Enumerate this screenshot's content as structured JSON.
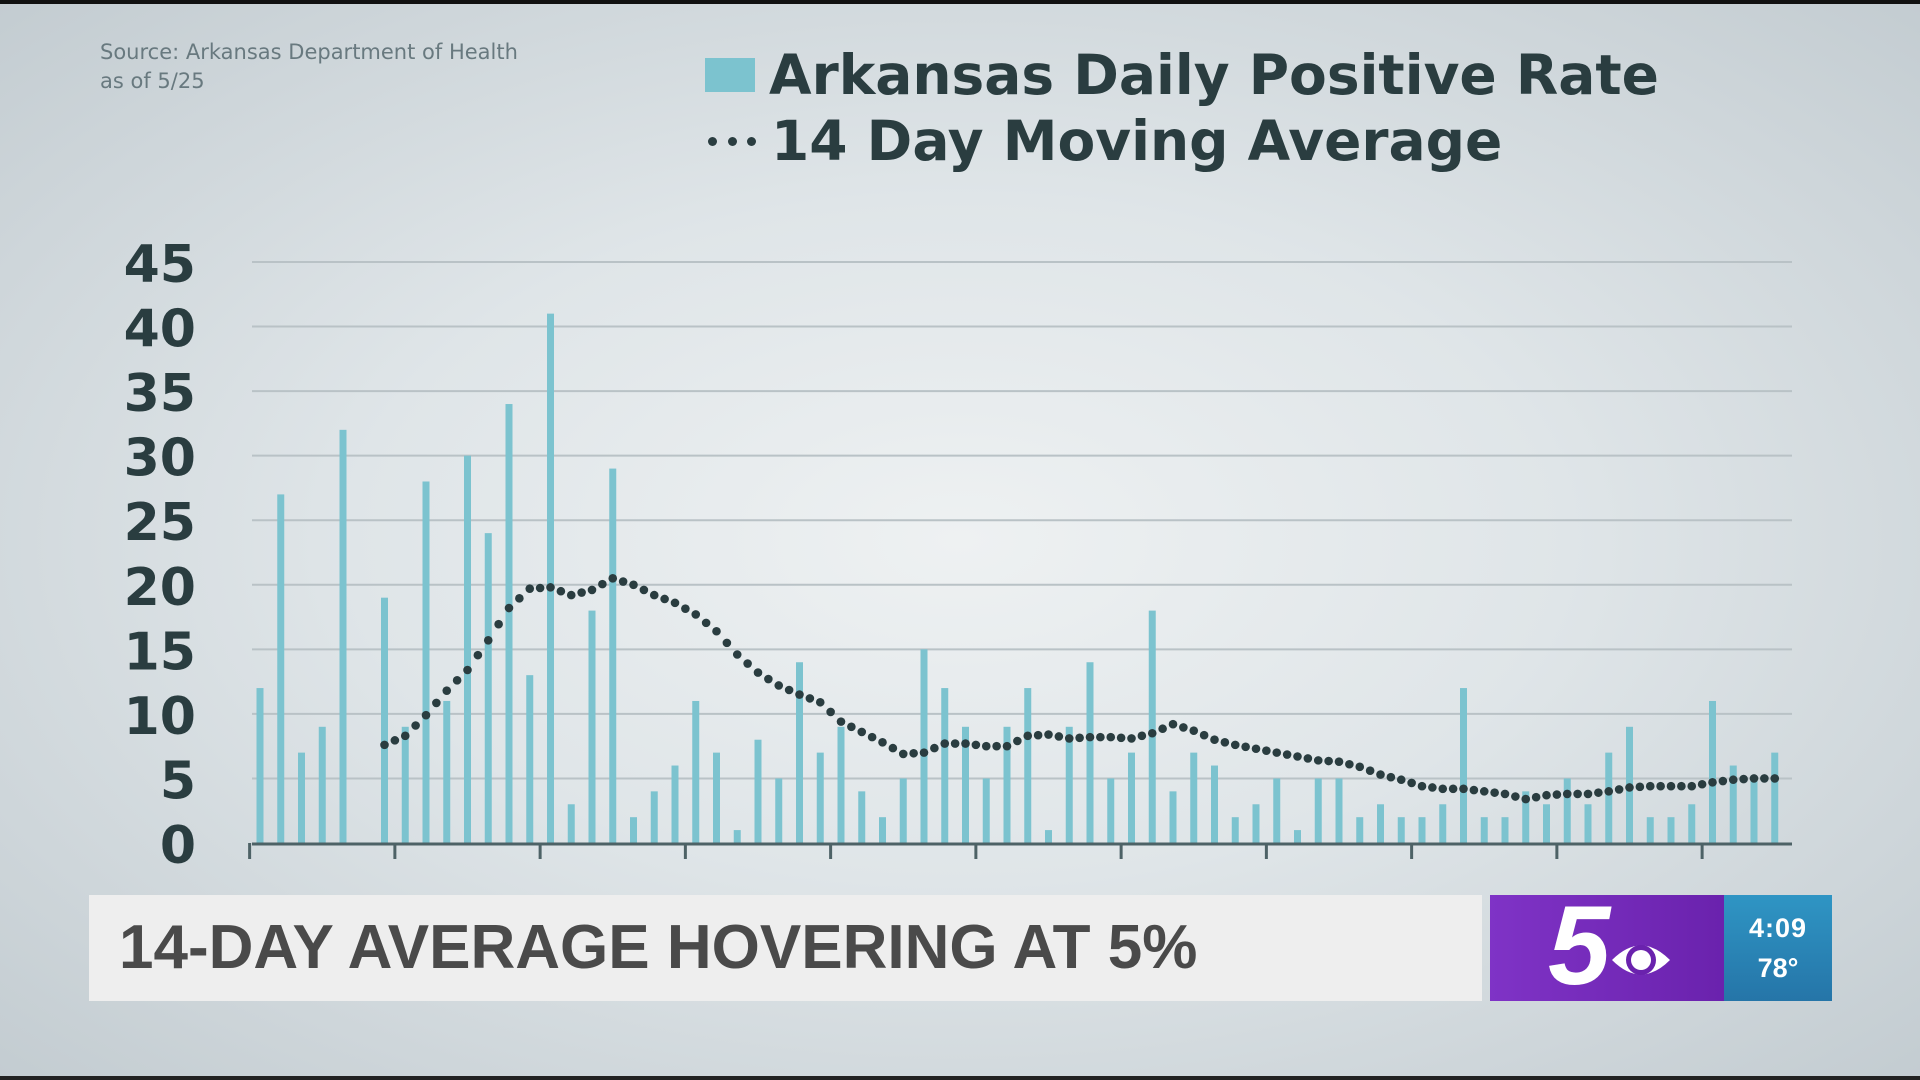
{
  "source_text": [
    "Source: Arkansas Department of Health",
    "as of 5/25"
  ],
  "legend": {
    "bar_label": "Arkansas Daily Positive Rate",
    "line_label": "14 Day Moving Average"
  },
  "lower_third": {
    "headline": "14-DAY AVERAGE HOVERING AT 5%"
  },
  "station": {
    "logo_text": "5",
    "logo_icon": "cbs-eye-icon",
    "time": "4:09",
    "temperature": "78°"
  },
  "colors": {
    "bar": "#7cc3cf",
    "line": "#2a3d40",
    "axis_text": "#2a3d40",
    "grid": "#b9c2c6"
  },
  "chart_data": {
    "type": "bar",
    "ylim": [
      0,
      45
    ],
    "y_ticks": [
      0,
      5,
      10,
      15,
      20,
      25,
      30,
      35,
      40,
      45
    ],
    "grid": true,
    "series": [
      {
        "name": "Arkansas Daily Positive Rate",
        "type": "bar",
        "values": [
          12,
          27,
          7,
          9,
          32,
          null,
          19,
          9,
          28,
          11,
          30,
          24,
          34,
          13,
          41,
          3,
          18,
          29,
          2,
          4,
          6,
          11,
          7,
          1,
          8,
          5,
          14,
          7,
          9,
          4,
          2,
          5,
          15,
          12,
          9,
          5,
          9,
          12,
          1,
          9,
          14,
          5,
          7,
          18,
          4,
          7,
          6,
          2,
          3,
          5,
          1,
          5,
          5,
          2,
          3,
          2,
          2,
          3,
          12,
          2,
          2,
          4,
          3,
          5,
          3,
          7,
          9,
          2,
          2,
          3,
          11,
          6,
          5,
          7
        ]
      },
      {
        "name": "14 Day Moving Average",
        "type": "line",
        "style": "dotted",
        "values": [
          null,
          null,
          null,
          null,
          null,
          null,
          7.6,
          8.3,
          9.9,
          11.8,
          13.4,
          15.7,
          18.2,
          19.7,
          19.8,
          19.2,
          19.6,
          20.5,
          20.0,
          19.2,
          18.6,
          17.7,
          16.4,
          14.6,
          13.2,
          12.2,
          11.5,
          10.9,
          9.4,
          8.6,
          7.8,
          6.9,
          7.0,
          7.7,
          7.7,
          7.5,
          7.5,
          8.3,
          8.4,
          8.1,
          8.2,
          8.2,
          8.1,
          8.5,
          9.2,
          8.7,
          8.0,
          7.6,
          7.3,
          7.0,
          6.7,
          6.4,
          6.3,
          5.9,
          5.3,
          4.9,
          4.4,
          4.2,
          4.2,
          4.0,
          3.8,
          3.4,
          3.7,
          3.8,
          3.8,
          4.0,
          4.3,
          4.4,
          4.4,
          4.4,
          4.7,
          4.9,
          5.0,
          5.0
        ]
      }
    ]
  }
}
